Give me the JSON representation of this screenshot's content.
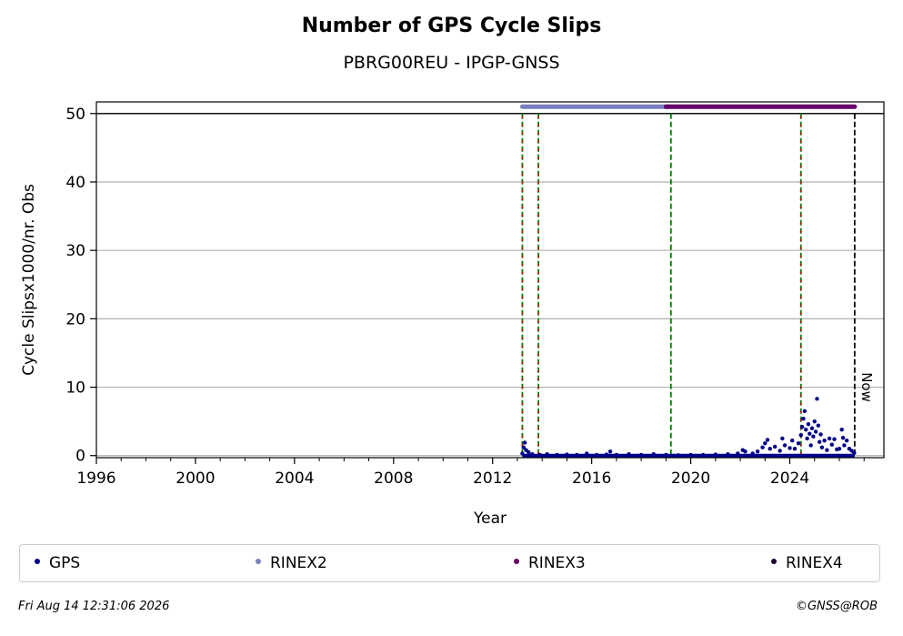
{
  "chart_data": {
    "type": "scatter",
    "title": "Number of GPS Cycle Slips",
    "subtitle": "PBRG00REU - IPGP-GNSS",
    "xlabel": "Year",
    "ylabel": "Cycle Slipsx1000/nr. Obs",
    "xlim": [
      1996,
      2027.8
    ],
    "ylim": [
      -0.3,
      51.7
    ],
    "x_ticks": [
      1996,
      2000,
      2004,
      2008,
      2012,
      2016,
      2020,
      2024
    ],
    "x_tick_labels": [
      "1996",
      "2000",
      "2004",
      "2008",
      "2012",
      "2016",
      "2020",
      "2024"
    ],
    "y_ticks": [
      0,
      10,
      20,
      30,
      40,
      50
    ],
    "y_tick_labels": [
      "0",
      "10",
      "20",
      "30",
      "40",
      "50"
    ],
    "grid": "horizontal",
    "ref_line": 50,
    "event_lines": [
      {
        "x": 2013.2,
        "style": "red-green"
      },
      {
        "x": 2013.85,
        "style": "red-green"
      },
      {
        "x": 2019.2,
        "style": "green"
      },
      {
        "x": 2024.45,
        "style": "red-green"
      }
    ],
    "now_line": {
      "x": 2026.62,
      "label": "Now"
    },
    "format_bars": [
      {
        "name": "RINEX2",
        "color": "#7b7fc0",
        "start": 2013.2,
        "end": 2019.1,
        "y": 51
      },
      {
        "name": "RINEX3",
        "color": "#660066",
        "start": 2019.0,
        "end": 2026.62,
        "y": 51
      }
    ],
    "series": [
      {
        "name": "GPS",
        "color": "#00008b",
        "points": [
          [
            2013.2,
            0.3
          ],
          [
            2013.25,
            1.2
          ],
          [
            2013.3,
            1.9
          ],
          [
            2013.35,
            0.8
          ],
          [
            2013.45,
            0.5
          ],
          [
            2013.6,
            0.2
          ],
          [
            2013.9,
            0.1
          ],
          [
            2014.2,
            0.2
          ],
          [
            2014.6,
            0.1
          ],
          [
            2015.0,
            0.15
          ],
          [
            2015.4,
            0.1
          ],
          [
            2015.8,
            0.3
          ],
          [
            2016.2,
            0.1
          ],
          [
            2016.6,
            0.15
          ],
          [
            2016.75,
            0.6
          ],
          [
            2017.0,
            0.1
          ],
          [
            2017.5,
            0.2
          ],
          [
            2018.0,
            0.1
          ],
          [
            2018.5,
            0.2
          ],
          [
            2019.0,
            0.1
          ],
          [
            2019.5,
            0.05
          ],
          [
            2020.0,
            0.1
          ],
          [
            2020.5,
            0.1
          ],
          [
            2021.0,
            0.15
          ],
          [
            2021.5,
            0.2
          ],
          [
            2021.9,
            0.3
          ],
          [
            2022.1,
            0.8
          ],
          [
            2022.2,
            0.6
          ],
          [
            2022.5,
            0.3
          ],
          [
            2022.7,
            0.6
          ],
          [
            2022.9,
            1.2
          ],
          [
            2023.0,
            1.8
          ],
          [
            2023.1,
            2.3
          ],
          [
            2023.2,
            1.0
          ],
          [
            2023.4,
            1.3
          ],
          [
            2023.6,
            0.7
          ],
          [
            2023.7,
            2.5
          ],
          [
            2023.8,
            1.5
          ],
          [
            2024.0,
            1.1
          ],
          [
            2024.1,
            2.2
          ],
          [
            2024.2,
            1.0
          ],
          [
            2024.35,
            1.8
          ],
          [
            2024.45,
            3.0
          ],
          [
            2024.5,
            4.2
          ],
          [
            2024.55,
            5.4
          ],
          [
            2024.6,
            6.5
          ],
          [
            2024.65,
            3.8
          ],
          [
            2024.7,
            2.5
          ],
          [
            2024.75,
            4.6
          ],
          [
            2024.8,
            3.2
          ],
          [
            2024.85,
            1.5
          ],
          [
            2024.9,
            4.0
          ],
          [
            2024.95,
            2.8
          ],
          [
            2025.0,
            5.0
          ],
          [
            2025.05,
            3.5
          ],
          [
            2025.1,
            8.3
          ],
          [
            2025.15,
            4.4
          ],
          [
            2025.2,
            2.0
          ],
          [
            2025.25,
            3.1
          ],
          [
            2025.3,
            1.2
          ],
          [
            2025.4,
            2.2
          ],
          [
            2025.5,
            0.8
          ],
          [
            2025.6,
            2.5
          ],
          [
            2025.7,
            1.6
          ],
          [
            2025.8,
            2.4
          ],
          [
            2025.9,
            0.9
          ],
          [
            2026.0,
            1.0
          ],
          [
            2026.1,
            3.8
          ],
          [
            2026.15,
            2.6
          ],
          [
            2026.2,
            1.5
          ],
          [
            2026.3,
            2.2
          ],
          [
            2026.4,
            1.0
          ],
          [
            2026.5,
            0.7
          ],
          [
            2026.6,
            0.4
          ]
        ]
      },
      {
        "name": "RINEX2",
        "color": "#7b7fc0",
        "points": []
      },
      {
        "name": "RINEX3",
        "color": "#660066",
        "points": []
      },
      {
        "name": "RINEX4",
        "color": "#1a0033",
        "points": []
      }
    ]
  },
  "legend": [
    {
      "label": "GPS",
      "color": "#00008b"
    },
    {
      "label": "RINEX2",
      "color": "#7b7fc0"
    },
    {
      "label": "RINEX3",
      "color": "#660066"
    },
    {
      "label": "RINEX4",
      "color": "#1a0033"
    }
  ],
  "footer": {
    "date": "Fri Aug 14 12:31:06 2026",
    "copyright": "©GNSS@ROB"
  }
}
